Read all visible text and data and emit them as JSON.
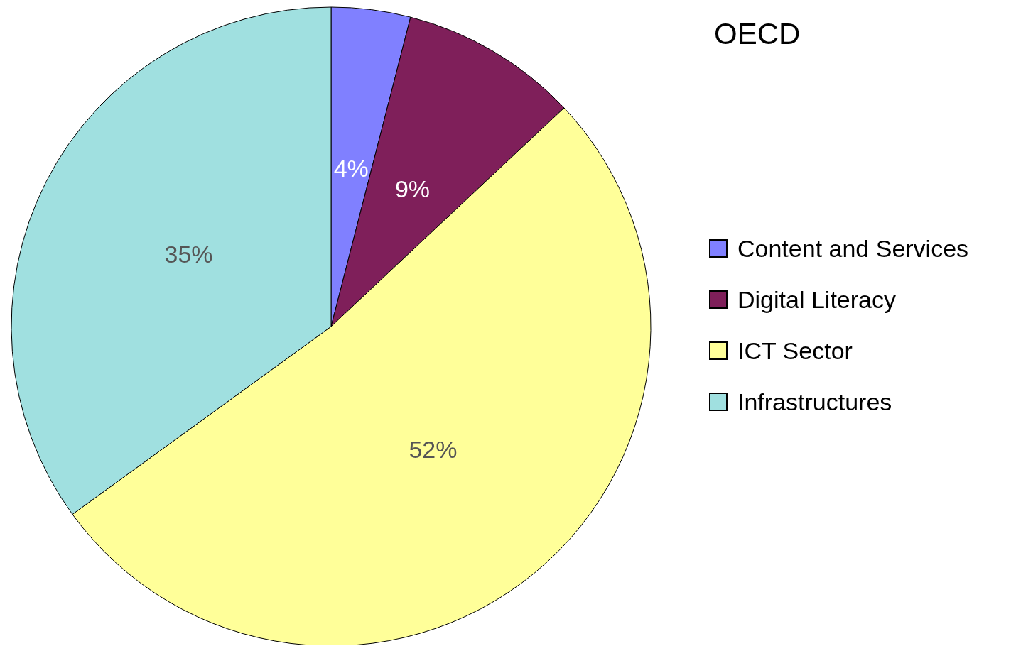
{
  "chart_data": {
    "type": "pie",
    "title": "OECD",
    "categories": [
      "Content and Services",
      "Digital Literacy",
      "ICT Sector",
      "Infrastructures"
    ],
    "values": [
      4,
      9,
      52,
      35
    ],
    "colors": [
      "#8080ff",
      "#7f1f5a",
      "#ffff99",
      "#a0e0e0"
    ],
    "value_labels": [
      "4%",
      "9%",
      "52%",
      "35%"
    ],
    "legend": "right"
  }
}
